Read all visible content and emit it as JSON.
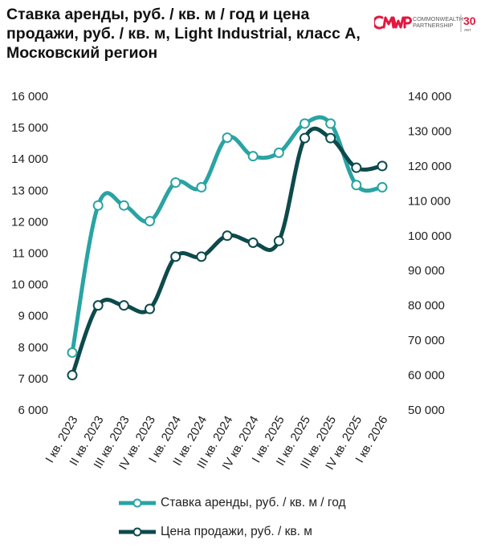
{
  "header": {
    "title": "Ставка аренды, руб. / кв. м / год и цена продажи, руб. / кв. м, Light Industrial, класс А, Московский регион",
    "logo": {
      "mark": "CMWP",
      "name_line1": "COMMONWEALTH",
      "name_line2": "PARTNERSHIP",
      "badge_number": "30",
      "badge_caption": "лет",
      "colors": {
        "red": "#e4173e",
        "text": "#5a5a5a"
      }
    }
  },
  "chart_data": {
    "type": "line",
    "categories": [
      "I кв. 2023",
      "II кв. 2023",
      "III кв. 2023",
      "IV кв. 2023",
      "I кв. 2024",
      "II кв. 2024",
      "III кв. 2024",
      "IV кв. 2024",
      "I кв. 2025",
      "II кв. 2025",
      "III кв. 2025",
      "IV кв. 2025",
      "I кв. 2026"
    ],
    "x_points": [
      "I кв. 2023",
      "II кв. 2023",
      "III кв. 2023",
      "IV кв. 2023",
      "I кв. 2024",
      "II кв. 2024",
      "III кв. 2024",
      "IV кв. 2024",
      "I кв. 2025",
      "II кв. 2025",
      "III кв. 2025",
      "IV кв. 2025",
      "I кв. 2026"
    ],
    "y_left": {
      "ylim": [
        6000,
        16000
      ],
      "ticks": [
        6000,
        7000,
        8000,
        9000,
        10000,
        11000,
        12000,
        13000,
        14000,
        15000,
        16000
      ],
      "tick_labels": [
        "6 000",
        "7 000",
        "8 000",
        "9 000",
        "10 000",
        "11 000",
        "12 000",
        "13 000",
        "14 000",
        "15 000",
        "16 000"
      ]
    },
    "y_right": {
      "ylim": [
        50000,
        140000
      ],
      "ticks": [
        50000,
        60000,
        70000,
        80000,
        90000,
        100000,
        110000,
        120000,
        130000,
        140000
      ],
      "tick_labels": [
        "50 000",
        "60 000",
        "70 000",
        "80 000",
        "90 000",
        "100 000",
        "110 000",
        "120 000",
        "130 000",
        "140 000"
      ]
    },
    "series": [
      {
        "name": "Ставка аренды, руб. / кв. м / год",
        "axis": "left",
        "color": "#2aa3a3",
        "values": [
          7830,
          12520,
          12520,
          12020,
          13250,
          13100,
          14680,
          14090,
          14200,
          15130,
          15130,
          13170,
          13100
        ]
      },
      {
        "name": "Цена продажи, руб. / кв. м",
        "axis": "right",
        "color": "#0d4a4c",
        "values": [
          60000,
          80000,
          80000,
          79000,
          94000,
          94000,
          100000,
          98000,
          98500,
          128000,
          128000,
          119500,
          120000
        ]
      }
    ],
    "grid": false,
    "legend": "bottom"
  }
}
